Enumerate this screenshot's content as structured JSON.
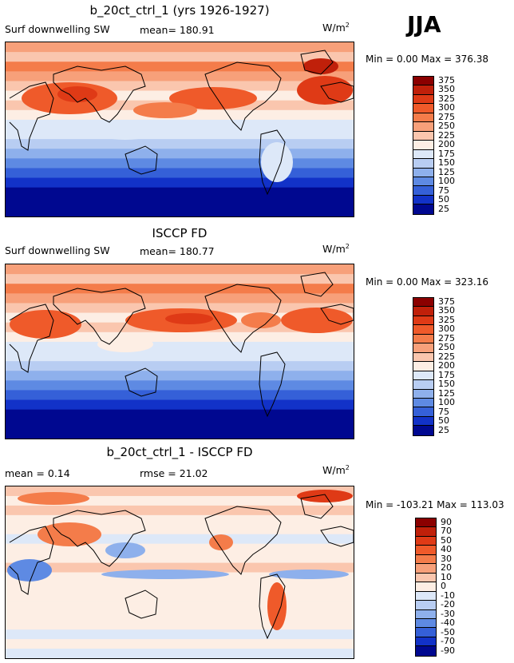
{
  "season": "JJA",
  "unit_base": "W/m",
  "unit_exp": "2",
  "palette": {
    "p375": "#8b0000",
    "p350": "#c0200a",
    "p325": "#df3a16",
    "p300": "#ef5a2a",
    "p275": "#f47c4a",
    "p250": "#f7a07a",
    "p225": "#fac6ae",
    "p200": "#fdeee4",
    "p175": "#dde8f8",
    "p150": "#b8cdf2",
    "p125": "#8eb0ec",
    "p100": "#5e8ae3",
    "p75": "#3560d8",
    "p50": "#1232c8",
    "p25": "#000890",
    "coast": "#000000"
  },
  "panels": [
    {
      "title": "b_20ct_ctrl_1 (yrs 1926-1927)",
      "left_label": "Surf downwelling SW",
      "mean_text": "mean= 180.91",
      "minmax": "Min =    0.00 Max = 376.38",
      "levels": [
        "375",
        "350",
        "325",
        "300",
        "275",
        "250",
        "225",
        "200",
        "175",
        "150",
        "125",
        "100",
        "75",
        "50",
        "25"
      ]
    },
    {
      "title": "ISCCP FD",
      "left_label": "Surf downwelling SW",
      "mean_text": "mean= 180.77",
      "minmax": "Min =    0.00 Max = 323.16",
      "levels": [
        "375",
        "350",
        "325",
        "300",
        "275",
        "250",
        "225",
        "200",
        "175",
        "150",
        "125",
        "100",
        "75",
        "50",
        "25"
      ]
    },
    {
      "title": "b_20ct_ctrl_1 - ISCCP FD",
      "left_label": "mean =    0.14",
      "mean_text": "rmse =   21.02",
      "minmax": "Min = -103.21 Max = 113.03",
      "levels": [
        "90",
        "70",
        "50",
        "40",
        "30",
        "20",
        "10",
        "0",
        "-10",
        "-20",
        "-30",
        "-40",
        "-50",
        "-70",
        "-90"
      ]
    }
  ]
}
